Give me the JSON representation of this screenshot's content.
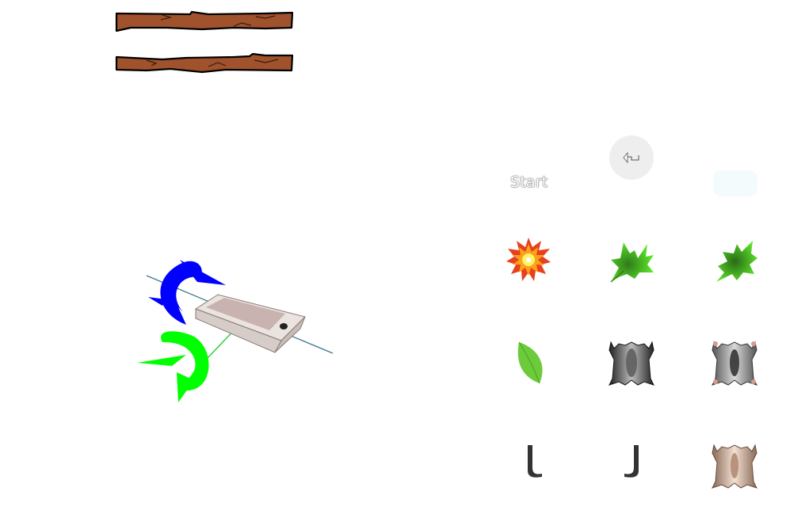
{
  "start_button": {
    "label": "Start"
  },
  "icons": {
    "back_button": "rotate-left-icon",
    "stick_1": "wooden-stick",
    "stick_2": "wooden-stick",
    "phone": "smartphone-rotation",
    "tiles": [
      "explosion-icon",
      "maple-leaf-icon",
      "maple-leaf-small-icon",
      "leaf-icon",
      "flying-squirrel-dark-icon",
      "flying-squirrel-gray-icon",
      "hook-left-icon",
      "hook-right-icon",
      "flying-squirrel-tan-icon"
    ]
  },
  "colors": {
    "stick": "#a0522d",
    "rotation_blue": "#0000ff",
    "rotation_green": "#00ff00",
    "button_bg": "#eeeeee"
  }
}
